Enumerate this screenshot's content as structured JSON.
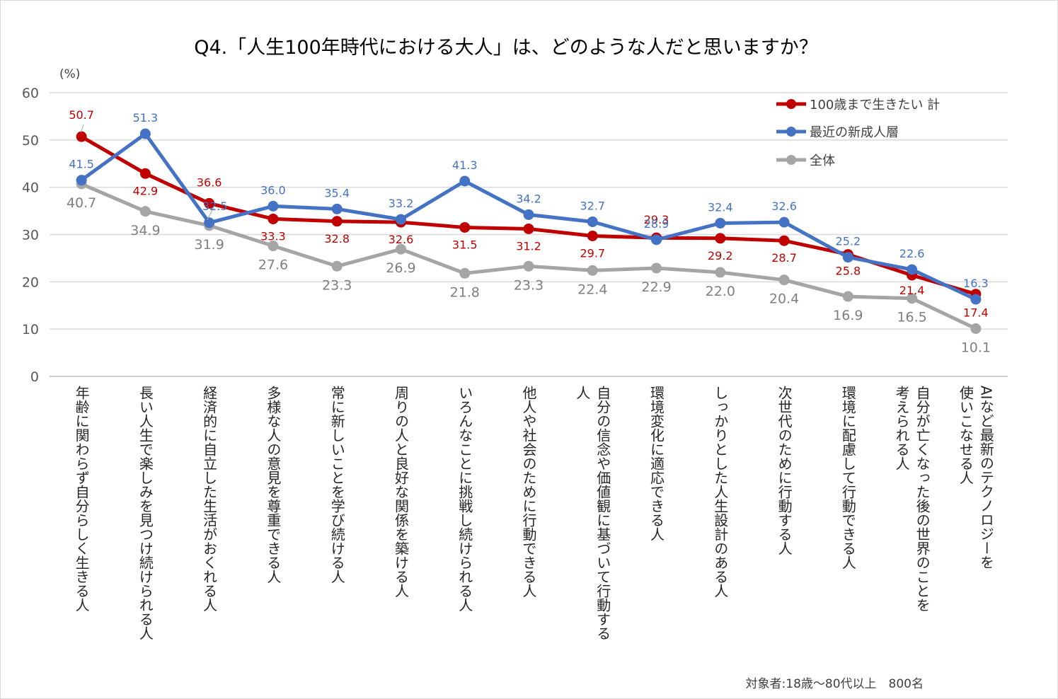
{
  "chart_data": {
    "type": "line",
    "title": "Q4.「人生100年時代における大人」は、どのような人だと思いますか？",
    "ylabel": "(%)",
    "ylim": [
      0,
      60
    ],
    "yticks": [
      0,
      10,
      20,
      30,
      40,
      50,
      60
    ],
    "grid": true,
    "legend_position": "top-right",
    "categories": [
      "年齢に関わらず自分らしく生きる人",
      "長い人生で楽しみを見つけ続けられる人",
      "経済的に自立した生活がおくれる人",
      "多様な人の意見を尊重できる人",
      "常に新しいことを学び続ける人",
      "周りの人と良好な関係を築ける人",
      "いろんなことに挑戦し続けられる人",
      "他人や社会のために行動できる人",
      "自分の信念や価値観に基づいて行動する人",
      "環境変化に適応できる人",
      "しっかりとした人生設計のある人",
      "次世代のために行動する人",
      "環境に配慮して行動できる人",
      "自分が亡くなった後の世界のことを考えられる人",
      "AIなど最新のテクノロジーを使いこなせる人"
    ],
    "series": [
      {
        "name": "100歳まで生きたい 計",
        "color": "#c00000",
        "values": [
          50.7,
          42.9,
          36.6,
          33.3,
          32.8,
          32.6,
          31.5,
          31.2,
          29.7,
          29.3,
          29.2,
          28.7,
          25.8,
          21.4,
          17.4
        ]
      },
      {
        "name": "最近の新成人層",
        "color": "#4472c4",
        "values": [
          41.5,
          51.3,
          32.5,
          36.0,
          35.4,
          33.2,
          41.3,
          34.2,
          32.7,
          28.9,
          32.4,
          32.6,
          25.2,
          22.6,
          16.3
        ]
      },
      {
        "name": "全体",
        "color": "#a5a5a5",
        "values": [
          40.7,
          34.9,
          31.9,
          27.6,
          23.3,
          26.9,
          21.8,
          23.3,
          22.4,
          22.9,
          22.0,
          20.4,
          16.9,
          16.5,
          10.1
        ]
      }
    ],
    "category_label_lines": [
      [
        "年齢に関わらず自分らしく生きる人"
      ],
      [
        "長い人生で楽しみを見つけ続けられる人"
      ],
      [
        "経済的に自立した生活がおくれる人"
      ],
      [
        "多様な人の意見を尊重できる人"
      ],
      [
        "常に新しいことを学び続ける人"
      ],
      [
        "周りの人と良好な関係を築ける人"
      ],
      [
        "いろんなことに挑戦し続けられる人"
      ],
      [
        "他人や社会のために行動できる人"
      ],
      [
        "自分の信念や価値観に基づいて行動する",
        "人"
      ],
      [
        "環境変化に適応できる人"
      ],
      [
        "しっかりとした人生設計のある人"
      ],
      [
        "次世代のために行動する人"
      ],
      [
        "環境に配慮して行動できる人"
      ],
      [
        "自分が亡くなった後の世界のことを",
        "考えられる人"
      ],
      [
        "AIなど最新のテクノロジーを",
        "使いこなせる人"
      ]
    ],
    "footnote": "対象者:18歳～80代以上　800名"
  }
}
